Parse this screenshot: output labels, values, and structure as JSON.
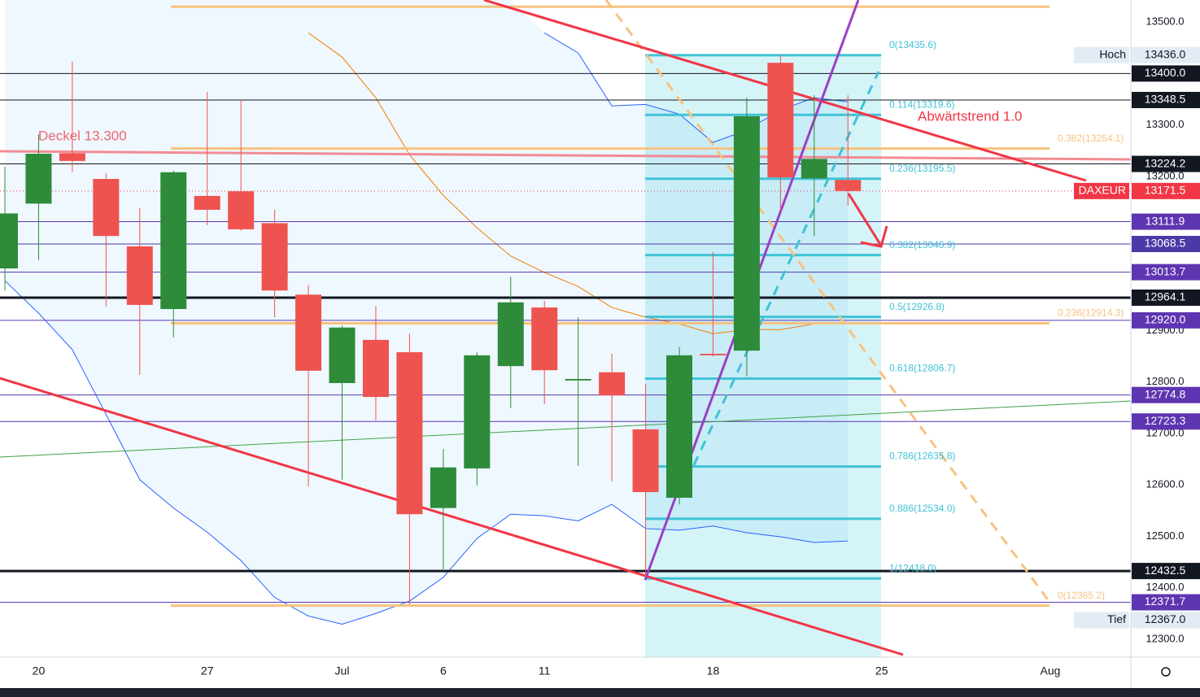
{
  "chart_data": {
    "type": "candlestick",
    "categories": [
      null,
      "20",
      null,
      null,
      null,
      null,
      "27",
      null,
      null,
      null,
      "Jul",
      null,
      null,
      "6",
      null,
      null,
      "11",
      null,
      null,
      null,
      null,
      "18",
      null,
      null,
      null,
      null,
      "25",
      null,
      null,
      null,
      null,
      "Aug"
    ],
    "open": [
      13021,
      13147,
      13245,
      13195,
      13064,
      12942,
      13162,
      13171,
      13109,
      12970,
      12798,
      12882,
      12858,
      12555,
      12632,
      12831,
      12945,
      12803,
      12819,
      12708,
      12575,
      12855,
      12861,
      13421,
      13196,
      13193,
      null,
      null,
      null,
      null,
      null,
      null
    ],
    "high": [
      13219,
      13282,
      13423,
      13206,
      13138,
      13211,
      13364,
      13350,
      13135,
      12989,
      12910,
      12948,
      12894,
      12670,
      12858,
      13005,
      12958,
      12926,
      12855,
      12796,
      12868,
      13053,
      13353,
      13436,
      13358,
      13358,
      null,
      null,
      null,
      null,
      null,
      null
    ],
    "low": [
      12978,
      13037,
      13208,
      12947,
      12814,
      12887,
      13105,
      13094,
      12926,
      12597,
      12610,
      12725,
      12367,
      12436,
      12599,
      12749,
      12757,
      12637,
      12607,
      12420,
      12562,
      12850,
      12811,
      13132,
      13084,
      13143,
      null,
      null,
      null,
      null,
      null,
      null
    ],
    "close": [
      13128,
      13244,
      13230,
      13084,
      12950,
      13208,
      13135,
      13097,
      12978,
      12822,
      12906,
      12771,
      12543,
      12634,
      12852,
      12955,
      12823,
      12806,
      12774,
      12586,
      12852,
      12852,
      13317,
      13198,
      13234,
      13171.5,
      null,
      null,
      null,
      null,
      null,
      null
    ],
    "up_color": "#2e8b3a",
    "down_color": "#ef5350",
    "band_upper": [
      null,
      null,
      null,
      null,
      null,
      null,
      null,
      null,
      null,
      null,
      null,
      null,
      null,
      null,
      null,
      null,
      13479,
      13440,
      13337,
      13340,
      13321,
      13266,
      13290,
      13329,
      13353,
      13345,
      null,
      null,
      null,
      null,
      null,
      null
    ],
    "band_lower": [
      12997,
      12934,
      12863,
      12737,
      12610,
      12555,
      12508,
      12453,
      12381,
      12345,
      12329,
      12350,
      12374,
      12420,
      12496,
      12543,
      12540,
      12530,
      12562,
      12515,
      12512,
      12520,
      12507,
      12499,
      12488,
      12491,
      null,
      null,
      null,
      null,
      null,
      null
    ],
    "band_color": "#2962ff",
    "ma": [
      null,
      null,
      null,
      null,
      null,
      null,
      null,
      null,
      null,
      13479,
      13432,
      13353,
      13242,
      13163,
      13100,
      13045,
      13013,
      12986,
      12945,
      12926,
      12913,
      12894,
      12902,
      12902,
      12913,
      null,
      null,
      null,
      null,
      null,
      null,
      null
    ],
    "ma_color": "#f57c00",
    "ylim": [
      12265,
      13543
    ],
    "yticks": [
      {
        "value": 13500,
        "label": "13500.0"
      },
      {
        "value": 13300,
        "label": "13300.0"
      },
      {
        "value": 13200,
        "label": "13200.0"
      },
      {
        "value": 12900,
        "label": "12900.0"
      },
      {
        "value": 12800,
        "label": "12800.0"
      },
      {
        "value": 12700,
        "label": "12700.0"
      },
      {
        "value": 12600,
        "label": "12600.0"
      },
      {
        "value": 12500,
        "label": "12500.0"
      },
      {
        "value": 12400,
        "label": "12400.0"
      },
      {
        "value": 12300,
        "label": "12300.0"
      }
    ],
    "levels": [
      {
        "value": 13436,
        "label": "13436.0",
        "tag": "Hoch",
        "color": "#e3ebf5",
        "line": "none"
      },
      {
        "value": 13400,
        "label": "13400.0",
        "color": "#131722",
        "line": "thin"
      },
      {
        "value": 13348.5,
        "label": "13348.5",
        "color": "#131722",
        "line": "thin"
      },
      {
        "value": 13224.2,
        "label": "13224.2",
        "color": "#131722",
        "line": "thin"
      },
      {
        "value": 13171.5,
        "label": "13171.5",
        "tag": "DAXEUR",
        "color": "#f23645",
        "line": "dotted"
      },
      {
        "value": 13111.9,
        "label": "13111.9",
        "color": "#5e35b1",
        "line": "thin"
      },
      {
        "value": 13068.5,
        "label": "13068.5",
        "color": "#4a3aa8",
        "line": "thin"
      },
      {
        "value": 13013.7,
        "label": "13013.7",
        "color": "#5e35b1",
        "line": "thin"
      },
      {
        "value": 12964.1,
        "label": "12964.1",
        "color": "#131722",
        "line": "thick"
      },
      {
        "value": 12920,
        "label": "12920.0",
        "color": "#5e35b1",
        "line": "thin"
      },
      {
        "value": 12774.8,
        "label": "12774.8",
        "color": "#5e35b1",
        "line": "thin"
      },
      {
        "value": 12723.3,
        "label": "12723.3",
        "color": "#5e35b1",
        "line": "thin"
      },
      {
        "value": 12432.5,
        "label": "12432.5",
        "color": "#131722",
        "line": "thick"
      },
      {
        "value": 12371.7,
        "label": "12371.7",
        "color": "#5e35b1",
        "line": "thin"
      },
      {
        "value": 12367,
        "label": "12367.0",
        "tag": "Tief",
        "color": "#e3ebf5",
        "line": "none"
      }
    ],
    "fib": [
      {
        "value": 13435.6,
        "label": "0(13435.6)"
      },
      {
        "value": 13319.6,
        "label": "0.114(13319.6)"
      },
      {
        "value": 13195.5,
        "label": "0.236(13195.5)"
      },
      {
        "value": 13046.9,
        "label": "0.382(13046.9)"
      },
      {
        "value": 12926.8,
        "label": "0.5(12926.8)"
      },
      {
        "value": 12806.7,
        "label": "0.618(12806.7)"
      },
      {
        "value": 12635.8,
        "label": "0.786(12635.8)"
      },
      {
        "value": 12534,
        "label": "0.886(12534.0)"
      },
      {
        "value": 12418,
        "label": "1(12418.0)"
      }
    ],
    "fib_color": "#3fc3d6",
    "fib2": [
      {
        "value": 13530
      },
      {
        "value": 13254.1,
        "label": "0.382(13254.1)"
      },
      {
        "value": 12914.3,
        "label": "0.236(12914.3)"
      },
      {
        "value": 12365.2,
        "label": "0(12365.2)"
      }
    ],
    "fib2_color": "#f7c27e",
    "annotations": [
      "Deckel 13.300",
      "Abwärtstrend 1.0"
    ]
  }
}
